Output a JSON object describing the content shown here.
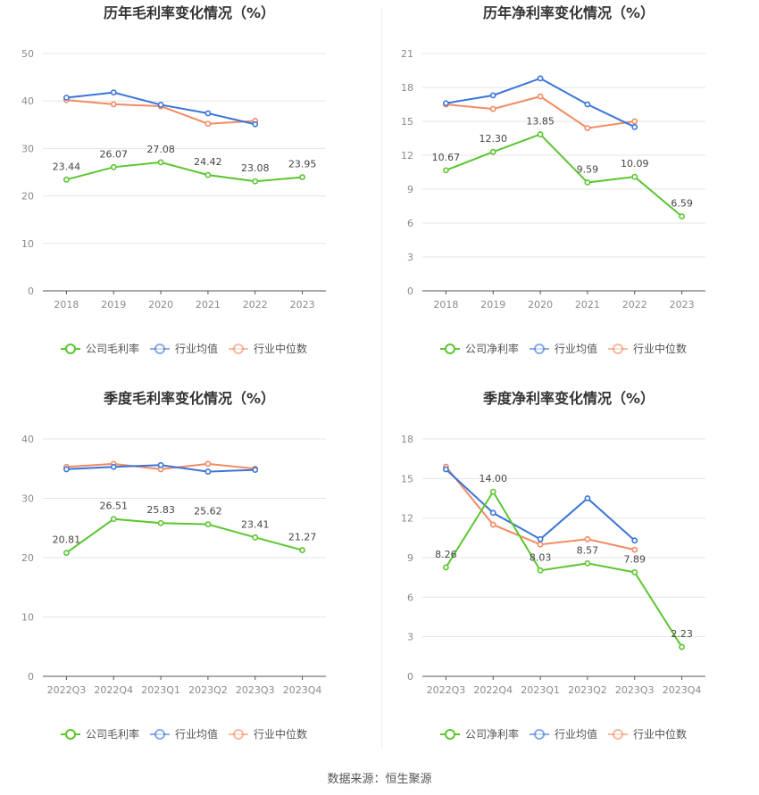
{
  "colors": {
    "company": "#5cc530",
    "avg": "#3a75d8",
    "median": "#f28b62",
    "grid": "#e5e5e5",
    "axis": "#555555"
  },
  "source": "数据来源：恒生聚源",
  "chart_data": [
    {
      "type": "line",
      "title": "历年毛利率变化情况（%）",
      "categories": [
        "2018",
        "2019",
        "2020",
        "2021",
        "2022",
        "2023"
      ],
      "ylim": [
        0,
        50
      ],
      "yticks": [
        0,
        10,
        20,
        30,
        40,
        50
      ],
      "series": [
        {
          "name": "公司毛利率",
          "values": [
            23.44,
            26.07,
            27.08,
            24.42,
            23.08,
            23.95
          ],
          "labels": [
            "23.44",
            "26.07",
            "27.08",
            "24.42",
            "23.08",
            "23.95"
          ]
        },
        {
          "name": "行业均值",
          "values": [
            40.7,
            41.8,
            39.2,
            37.4,
            35.1,
            null
          ]
        },
        {
          "name": "行业中位数",
          "values": [
            40.2,
            39.3,
            38.9,
            35.2,
            35.8,
            null
          ]
        }
      ]
    },
    {
      "type": "line",
      "title": "历年净利率变化情况（%）",
      "categories": [
        "2018",
        "2019",
        "2020",
        "2021",
        "2022",
        "2023"
      ],
      "ylim": [
        0,
        21
      ],
      "yticks": [
        0,
        3,
        6,
        9,
        12,
        15,
        18,
        21
      ],
      "series": [
        {
          "name": "公司净利率",
          "values": [
            10.67,
            12.3,
            13.85,
            9.59,
            10.09,
            6.59
          ],
          "labels": [
            "10.67",
            "12.30",
            "13.85",
            "9.59",
            "10.09",
            "6.59"
          ]
        },
        {
          "name": "行业均值",
          "values": [
            16.6,
            17.3,
            18.8,
            16.5,
            14.5,
            null
          ]
        },
        {
          "name": "行业中位数",
          "values": [
            16.5,
            16.1,
            17.2,
            14.4,
            15.0,
            null
          ]
        }
      ]
    },
    {
      "type": "line",
      "title": "季度毛利率变化情况（%）",
      "categories": [
        "2022Q3",
        "2022Q4",
        "2023Q1",
        "2023Q2",
        "2023Q3",
        "2023Q4"
      ],
      "ylim": [
        0,
        40
      ],
      "yticks": [
        0,
        10,
        20,
        30,
        40
      ],
      "series": [
        {
          "name": "公司毛利率",
          "values": [
            20.81,
            26.51,
            25.83,
            25.62,
            23.41,
            21.27
          ],
          "labels": [
            "20.81",
            "26.51",
            "25.83",
            "25.62",
            "23.41",
            "21.27"
          ]
        },
        {
          "name": "行业均值",
          "values": [
            34.9,
            35.3,
            35.6,
            34.5,
            34.8,
            null
          ]
        },
        {
          "name": "行业中位数",
          "values": [
            35.3,
            35.8,
            34.9,
            35.8,
            35.0,
            null
          ]
        }
      ]
    },
    {
      "type": "line",
      "title": "季度净利率变化情况（%）",
      "categories": [
        "2022Q3",
        "2022Q4",
        "2023Q1",
        "2023Q2",
        "2023Q3",
        "2023Q4"
      ],
      "ylim": [
        0,
        18
      ],
      "yticks": [
        0,
        3,
        6,
        9,
        12,
        15,
        18
      ],
      "series": [
        {
          "name": "公司净利率",
          "values": [
            8.26,
            14.0,
            8.03,
            8.57,
            7.89,
            2.23
          ],
          "labels": [
            "8.26",
            "14.00",
            "8.03",
            "8.57",
            "7.89",
            "2.23"
          ]
        },
        {
          "name": "行业均值",
          "values": [
            15.7,
            12.4,
            10.4,
            13.5,
            10.3,
            null
          ]
        },
        {
          "name": "行业中位数",
          "values": [
            15.9,
            11.5,
            10.0,
            10.4,
            9.6,
            null
          ]
        }
      ]
    }
  ]
}
